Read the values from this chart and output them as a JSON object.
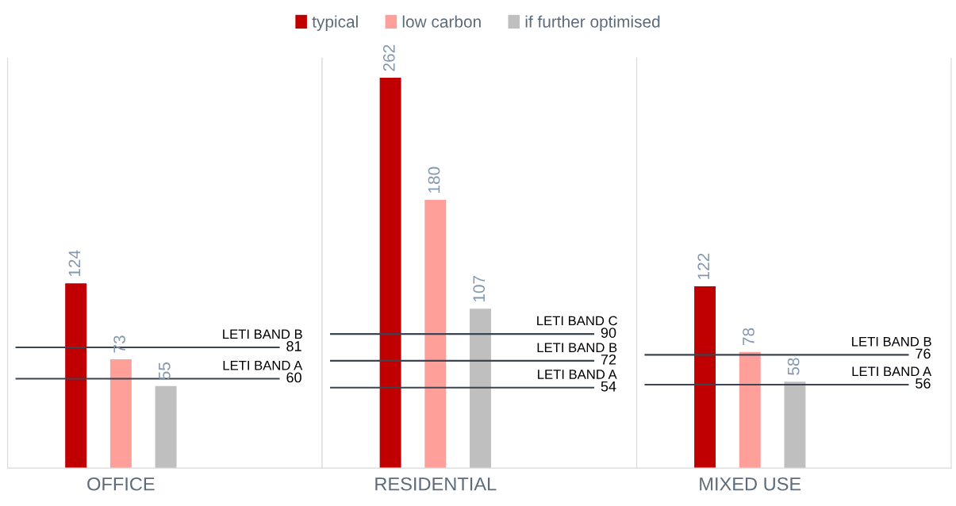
{
  "chart_data": [
    {
      "type": "bar",
      "categories": [
        "OFFICE"
      ],
      "tick_labels": "x",
      "data_labels": true,
      "legend": "top",
      "series": [
        {
          "name": "typical",
          "color": "#c00000",
          "values": [
            124
          ]
        },
        {
          "name": "low carbon",
          "color": "#ff9f9a",
          "values": [
            73
          ]
        },
        {
          "name": "if further optimised",
          "color": "#bfbfbf",
          "values": [
            55
          ]
        }
      ],
      "ref_lines": [
        {
          "axis": "y",
          "value": 81,
          "label": "LETI BAND B",
          "color": "#3b4450"
        },
        {
          "axis": "y",
          "value": 60,
          "label": "LETI BAND A",
          "color": "#3b4450"
        }
      ],
      "annotations": [
        "81",
        "60"
      ]
    },
    {
      "type": "bar",
      "categories": [
        "RESIDENTIAL"
      ],
      "tick_labels": "x",
      "data_labels": true,
      "series": [
        {
          "color": "#c00000",
          "values": [
            262
          ]
        },
        {
          "color": "#ff9f9a",
          "values": [
            180
          ]
        },
        {
          "color": "#bfbfbf",
          "values": [
            107
          ]
        }
      ],
      "ref_lines": [
        {
          "axis": "y",
          "value": 90,
          "label": "LETI BAND C",
          "color": "#3b4450"
        },
        {
          "axis": "y",
          "value": 72,
          "label": "LETI BAND B",
          "color": "#3b4450"
        },
        {
          "axis": "y",
          "value": 54,
          "label": "LETI BAND A",
          "color": "#3b4450"
        }
      ],
      "annotations": [
        "90",
        "72",
        "54"
      ]
    },
    {
      "type": "bar",
      "categories": [
        "MIXED USE"
      ],
      "tick_labels": "x",
      "data_labels": true,
      "series": [
        {
          "color": "#c00000",
          "values": [
            122
          ]
        },
        {
          "color": "#ff9f9a",
          "values": [
            78
          ]
        },
        {
          "color": "#bfbfbf",
          "values": [
            58
          ]
        }
      ],
      "ref_lines": [
        {
          "axis": "y",
          "value": 76,
          "label": "LETI BAND B",
          "color": "#3b4450"
        },
        {
          "axis": "y",
          "value": 56,
          "label": "LETI BAND A",
          "color": "#3b4450"
        }
      ],
      "annotations": [
        "76",
        "56"
      ]
    }
  ]
}
